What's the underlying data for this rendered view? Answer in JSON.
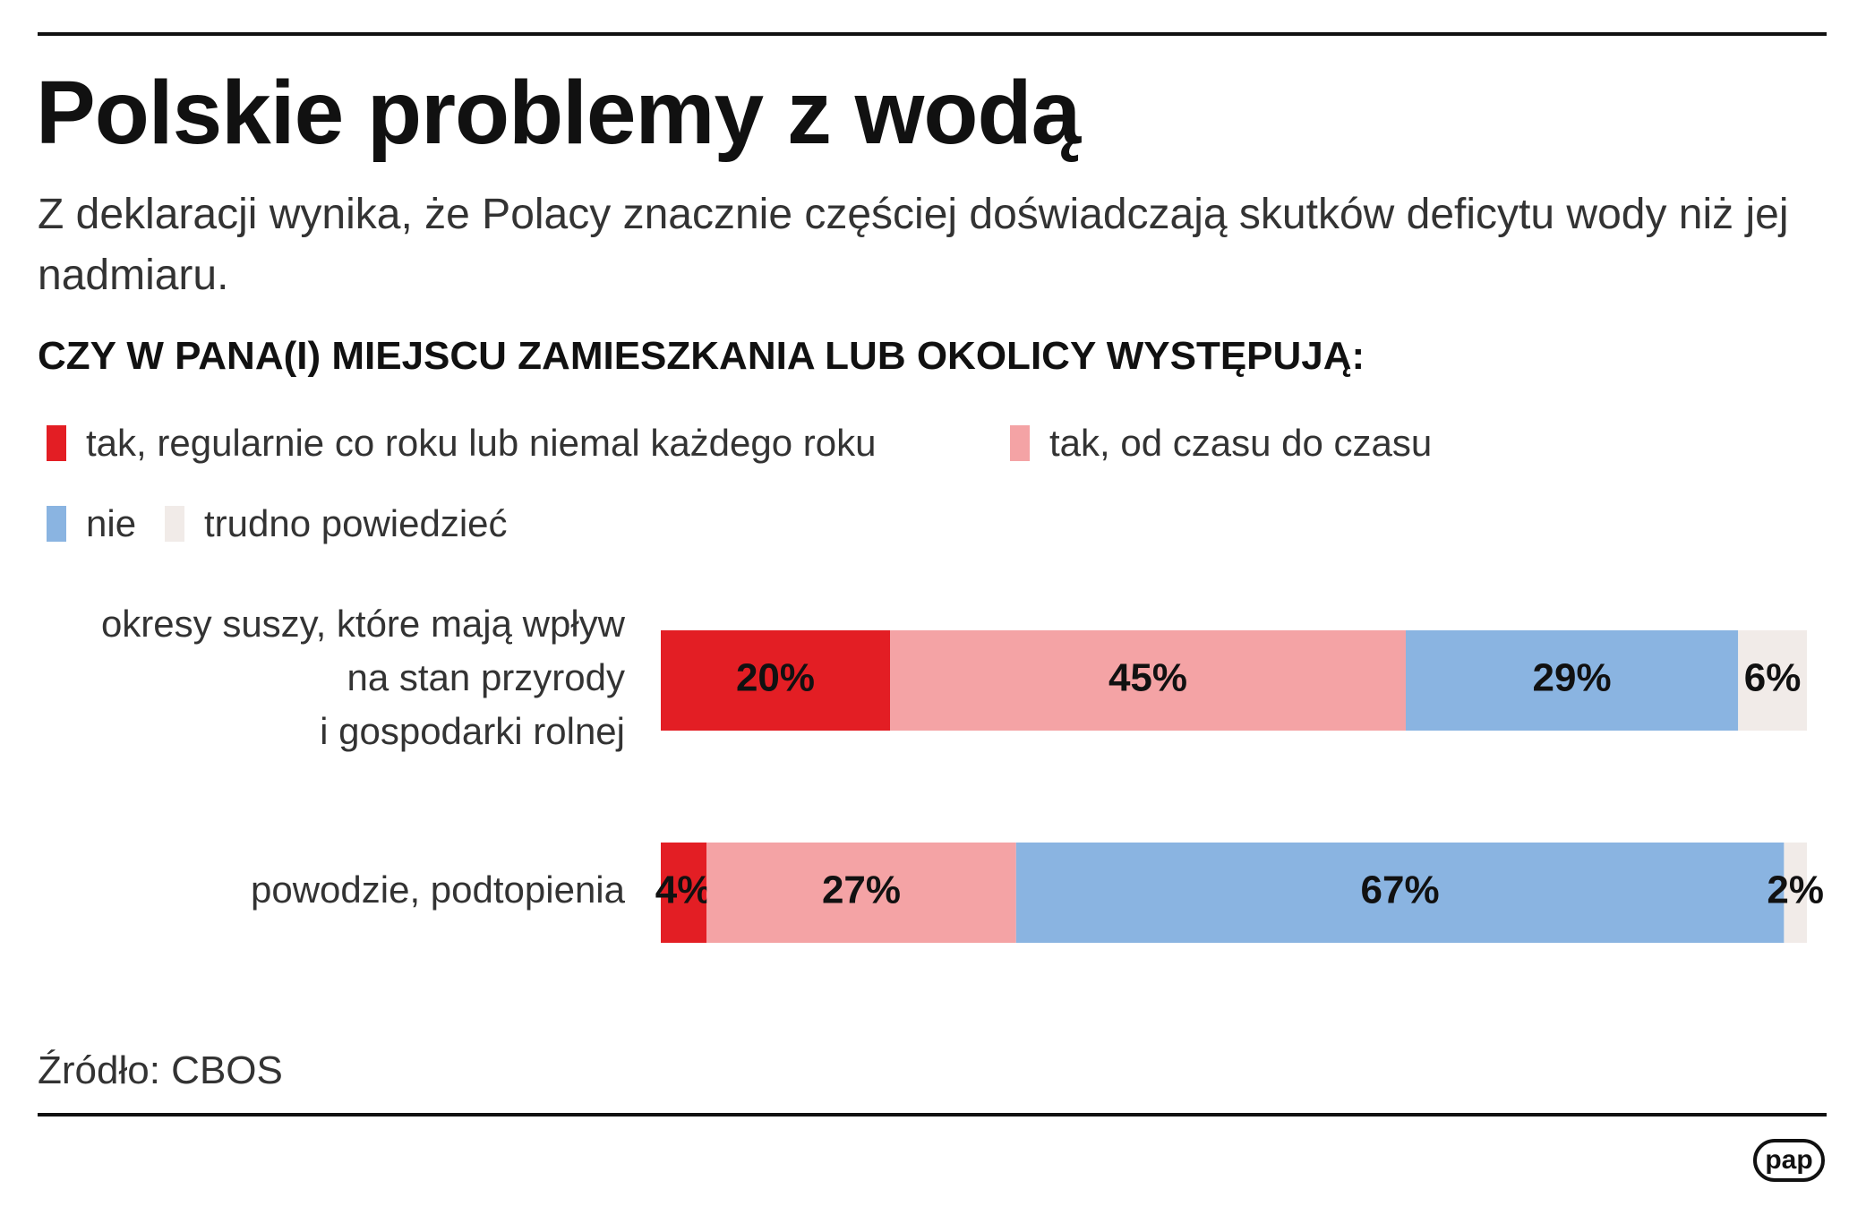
{
  "header": {
    "title": "Polskie problemy z wodą",
    "subtitle": "Z deklaracji wynika, że Polacy znacznie częściej doświadczają skutków deficytu wody niż jej nadmiaru."
  },
  "question": "CZY W PANA(I) MIEJSCU ZAMIESZKANIA LUB OKOLICY WYSTĘPUJĄ:",
  "legend": [
    {
      "label": "tak, regularnie co roku lub niemal każdego roku",
      "color": "#e31e24"
    },
    {
      "label": "tak, od czasu do czasu",
      "color": "#f4a3a5"
    },
    {
      "label": "nie",
      "color": "#8ab4e1"
    },
    {
      "label": "trudno powiedzieć",
      "color": "#f1ebe8"
    }
  ],
  "chart_data": {
    "type": "bar",
    "orientation": "horizontal",
    "stacked": true,
    "unit": "%",
    "categories": [
      [
        "okresy suszy, które mają wpływ",
        "na stan przyrody",
        "i gospodarki rolnej"
      ],
      [
        "powodzie, podtopienia"
      ]
    ],
    "series": [
      {
        "name": "tak, regularnie co roku lub niemal każdego roku",
        "color": "#e31e24",
        "values": [
          20,
          4
        ]
      },
      {
        "name": "tak, od czasu do czasu",
        "color": "#f4a3a5",
        "values": [
          45,
          27
        ]
      },
      {
        "name": "nie",
        "color": "#8ab4e1",
        "values": [
          29,
          67
        ]
      },
      {
        "name": "trudno powiedzieć",
        "color": "#f1ebe8",
        "values": [
          6,
          2
        ]
      }
    ],
    "data_labels": [
      [
        "20%",
        "45%",
        "29%",
        "6%"
      ],
      [
        "4%",
        "27%",
        "67%",
        "2%"
      ]
    ],
    "xlim": [
      0,
      100
    ],
    "grid": false,
    "legend_position": "top-left"
  },
  "source": "Źródło: CBOS",
  "logo_text": "pap"
}
